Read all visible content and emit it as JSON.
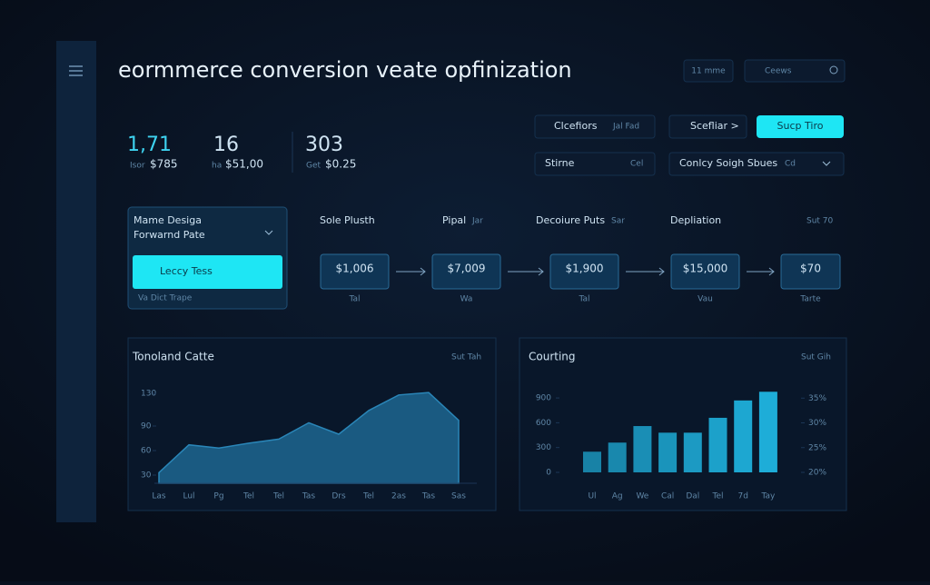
{
  "header": {
    "title": "eormmerce conversion veate opfinization",
    "menu_button": "11 mme",
    "search": "Ceews"
  },
  "kpis": [
    {
      "value": "1,71",
      "label": "Isor",
      "amount": "$785"
    },
    {
      "value": "16",
      "label": "ha",
      "amount": "$51,00"
    },
    {
      "value": "303",
      "label": "Get",
      "amount": "$0.25"
    }
  ],
  "filters": [
    "Clcefiors",
    "Jal Fad",
    "Scefliar >",
    "Sucp Tiro",
    "Stirne",
    "Cel",
    "Conlcy Soigh Sbues",
    "Cd"
  ],
  "side_panel": {
    "title": "Mame Desiga",
    "subtitle": "Forwarnd Pate",
    "button": "Leccy Tess",
    "footer": "Va Dict Trape"
  },
  "funnel": {
    "headings": [
      "Sole Plusth",
      "Pipal",
      "Jar",
      "Decoiure Puts",
      "Sar",
      "Depliation",
      "Sut 70"
    ],
    "steps": [
      {
        "value": "$1,006",
        "label": "Tal"
      },
      {
        "value": "$7,009",
        "label": "Wa"
      },
      {
        "value": "$1,900",
        "label": "Tal"
      },
      {
        "value": "$15,000",
        "label": "Vau"
      },
      {
        "value": "$70",
        "label": "Tarte"
      }
    ]
  },
  "chart_data": [
    {
      "type": "area",
      "title": "Tonoland Catte",
      "link": "Sut Tah",
      "categories": [
        "Las",
        "Lul",
        "Pg",
        "Tel",
        "Tel",
        "Tas",
        "Drs",
        "Tel",
        "2as",
        "Tas",
        "Sas"
      ],
      "values": [
        33,
        67,
        63,
        69,
        74,
        94,
        80,
        109,
        128,
        131,
        97
      ],
      "color": "#1b5e86",
      "ylim": [
        20,
        140
      ],
      "yticks": [
        30,
        60,
        90,
        130
      ]
    },
    {
      "type": "bar",
      "title": "Courting",
      "link": "Sut Gih",
      "categories": [
        "Ul",
        "Ag",
        "We",
        "Cal",
        "Dal",
        "Tel",
        "7d",
        "Tay"
      ],
      "values": [
        250,
        360,
        560,
        480,
        480,
        660,
        870,
        975
      ],
      "color": "#1fb0dc",
      "ylim": [
        0,
        1000
      ],
      "yticks": [
        0,
        300,
        600,
        900
      ],
      "y2lim": [
        20,
        36.7
      ],
      "y2ticks": [
        {
          "value": 20,
          "label": "20%"
        },
        {
          "value": 25,
          "label": "25%"
        },
        {
          "value": 30,
          "label": "30%"
        },
        {
          "value": 35,
          "label": "35%"
        }
      ]
    }
  ]
}
